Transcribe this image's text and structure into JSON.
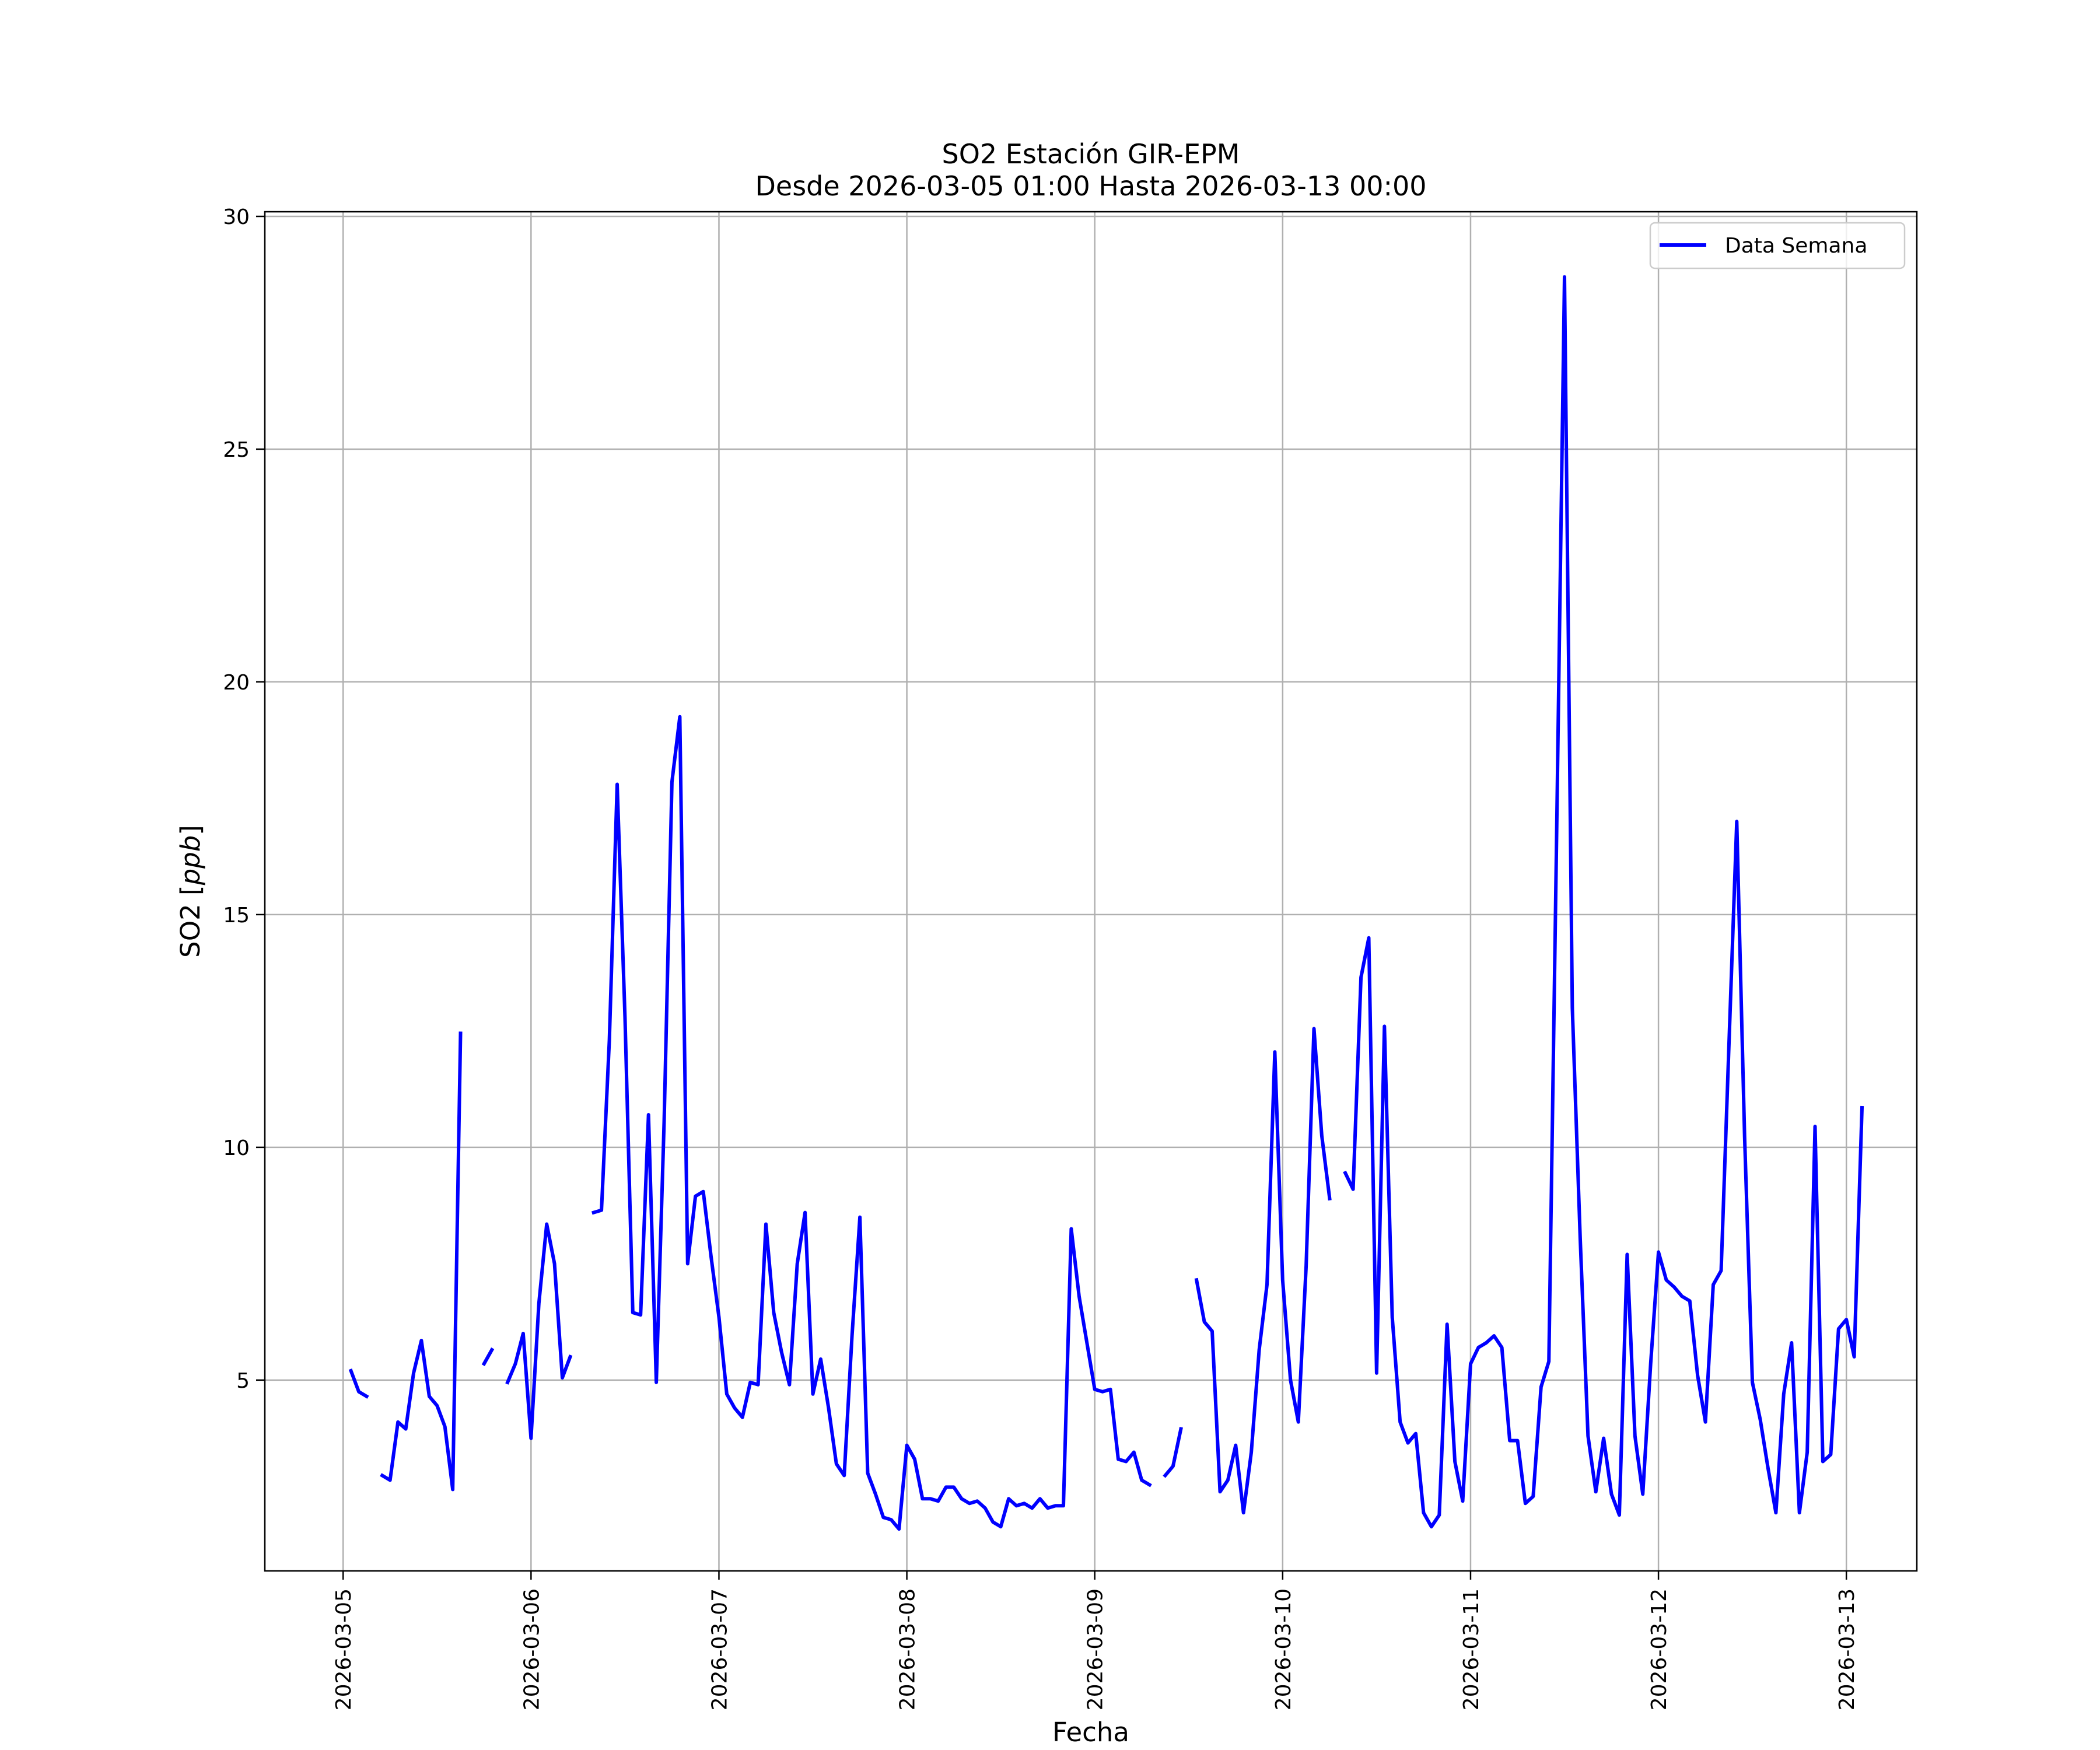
{
  "chart_data": {
    "type": "line",
    "title": "SO2 Estación GIR-EPM",
    "subtitle": "Desde 2026-03-05 01:00 Hasta 2026-03-13 00:00",
    "xlabel": "Fecha",
    "ylabel": "SO2 [ppb]",
    "ylabel_main": "SO2 [",
    "ylabel_unit": "ppb",
    "ylabel_close": "]",
    "xlim": [
      "2026-03-04 14:00",
      "2026-03-13 09:00"
    ],
    "ylim": [
      0.9,
      30.1
    ],
    "x_ticks": [
      "2026-03-05",
      "2026-03-06",
      "2026-03-07",
      "2026-03-08",
      "2026-03-09",
      "2026-03-10",
      "2026-03-11",
      "2026-03-12",
      "2026-03-13"
    ],
    "y_ticks": [
      5,
      10,
      15,
      20,
      25,
      30
    ],
    "grid": true,
    "legend_position": "top-right",
    "series": [
      {
        "name": "Data Semana",
        "color": "#0000ff",
        "x_start": "2026-03-05 01:00",
        "x_step_hours": 1,
        "values": [
          5.2,
          4.75,
          4.65,
          null,
          2.95,
          2.85,
          4.1,
          3.95,
          5.15,
          5.85,
          4.65,
          4.45,
          4.0,
          2.65,
          12.45,
          null,
          null,
          5.35,
          5.65,
          null,
          4.95,
          5.35,
          6.0,
          3.75,
          6.65,
          8.35,
          7.5,
          5.05,
          5.5,
          null,
          null,
          8.6,
          8.65,
          12.3,
          17.8,
          12.8,
          6.45,
          6.4,
          10.7,
          4.95,
          10.55,
          17.85,
          19.25,
          7.5,
          8.95,
          9.05,
          7.65,
          6.35,
          4.7,
          4.4,
          4.2,
          4.95,
          4.9,
          8.35,
          6.45,
          5.6,
          4.9,
          7.5,
          8.6,
          4.7,
          5.45,
          4.4,
          3.2,
          2.95,
          5.95,
          8.5,
          3.0,
          2.55,
          2.05,
          2.0,
          1.8,
          3.6,
          3.3,
          2.45,
          2.45,
          2.4,
          2.7,
          2.7,
          2.45,
          2.35,
          2.4,
          2.25,
          1.95,
          1.85,
          2.45,
          2.3,
          2.35,
          2.25,
          2.45,
          2.25,
          2.3,
          2.3,
          8.25,
          6.8,
          5.8,
          4.8,
          4.75,
          4.8,
          3.3,
          3.25,
          3.45,
          2.85,
          2.75,
          null,
          2.95,
          3.15,
          3.95,
          null,
          7.15,
          6.25,
          6.05,
          2.6,
          2.85,
          3.6,
          2.15,
          3.45,
          5.65,
          7.05,
          12.05,
          7.15,
          5.0,
          4.1,
          7.45,
          12.55,
          10.25,
          8.9,
          null,
          9.45,
          9.1,
          13.65,
          14.5,
          5.15,
          12.6,
          6.35,
          4.1,
          3.65,
          3.85,
          2.15,
          1.85,
          2.1,
          6.2,
          3.25,
          2.4,
          5.35,
          5.7,
          5.8,
          5.95,
          5.7,
          3.7,
          3.7,
          2.35,
          2.5,
          4.85,
          5.4,
          16.8,
          28.7,
          13.0,
          8.05,
          3.8,
          2.6,
          3.75,
          2.55,
          2.1,
          7.7,
          3.8,
          2.55,
          5.35,
          7.75,
          7.15,
          7.0,
          6.8,
          6.7,
          5.1,
          4.1,
          7.05,
          7.35,
          12.2,
          17.0,
          10.25,
          4.95,
          4.15,
          3.1,
          2.15,
          4.7,
          5.8,
          2.15,
          3.45,
          10.45,
          3.25,
          3.4,
          6.1,
          6.3,
          5.5,
          10.85
        ]
      }
    ]
  }
}
